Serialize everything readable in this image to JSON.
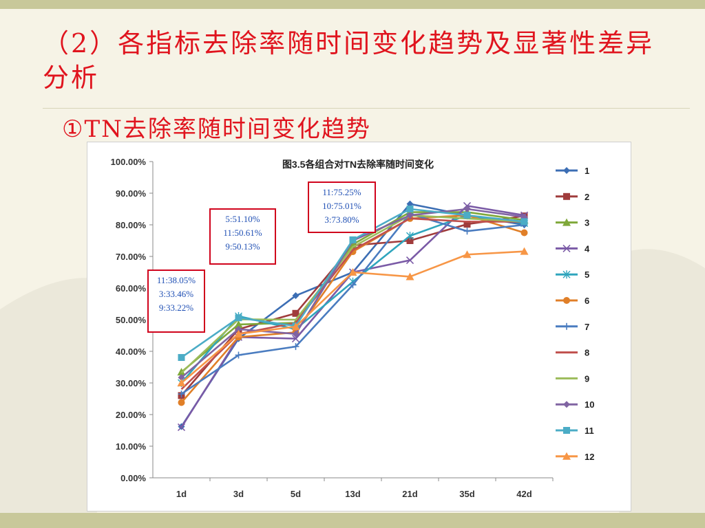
{
  "slide": {
    "title": "（2）各指标去除率随时间变化趋势及显著性差异分析",
    "subtitle": "①TN去除率随时间变化趋势"
  },
  "chart_data": {
    "type": "line",
    "title": "图3.5各组合对TN去除率随时间变化",
    "categories": [
      "1d",
      "3d",
      "5d",
      "13d",
      "21d",
      "35d",
      "42d"
    ],
    "y_ticks": [
      "0.00%",
      "10.00%",
      "20.00%",
      "30.00%",
      "40.00%",
      "50.00%",
      "60.00%",
      "70.00%",
      "80.00%",
      "90.00%",
      "100.00%"
    ],
    "ylim": [
      0,
      100
    ],
    "xlabel": "",
    "ylabel": "",
    "legend_position": "right",
    "series": [
      {
        "name": "1",
        "color": "#3c6eb4",
        "marker": "diamond",
        "values": [
          16.2,
          44.0,
          57.6,
          65.0,
          86.6,
          83.0,
          80.0
        ]
      },
      {
        "name": "2",
        "color": "#a03c3c",
        "marker": "square",
        "values": [
          26.0,
          47.0,
          52.0,
          73.5,
          75.0,
          80.2,
          82.8
        ]
      },
      {
        "name": "3",
        "color": "#7fa83a",
        "marker": "triangle",
        "values": [
          33.46,
          48.5,
          49.0,
          73.8,
          84.0,
          84.0,
          81.5
        ]
      },
      {
        "name": "4",
        "color": "#7a5aa6",
        "marker": "x",
        "values": [
          16.0,
          44.5,
          44.0,
          65.0,
          68.8,
          86.0,
          83.0
        ]
      },
      {
        "name": "5",
        "color": "#2fa5bd",
        "marker": "star",
        "values": [
          30.0,
          51.1,
          47.0,
          62.0,
          76.5,
          83.0,
          80.5
        ]
      },
      {
        "name": "6",
        "color": "#e07f28",
        "marker": "circle",
        "values": [
          23.8,
          44.5,
          46.0,
          71.5,
          82.0,
          83.0,
          77.5
        ]
      },
      {
        "name": "7",
        "color": "#4a7cc0",
        "marker": "plus",
        "values": [
          26.5,
          38.8,
          41.5,
          61.0,
          83.5,
          78.0,
          80.0
        ]
      },
      {
        "name": "8",
        "color": "#c0504d",
        "marker": "none",
        "values": [
          28.0,
          45.5,
          49.0,
          72.0,
          82.0,
          81.0,
          81.0
        ]
      },
      {
        "name": "9",
        "color": "#9bbb59",
        "marker": "none",
        "values": [
          33.22,
          50.13,
          50.0,
          73.0,
          83.0,
          82.0,
          81.0
        ]
      },
      {
        "name": "10",
        "color": "#8064a2",
        "marker": "diamond",
        "values": [
          31.7,
          47.0,
          45.5,
          75.01,
          83.0,
          85.0,
          82.5
        ]
      },
      {
        "name": "11",
        "color": "#4bacc6",
        "marker": "square",
        "values": [
          38.05,
          50.61,
          48.0,
          75.25,
          85.0,
          83.0,
          81.0
        ]
      },
      {
        "name": "12",
        "color": "#f79646",
        "marker": "triangle",
        "values": [
          30.0,
          45.5,
          47.8,
          65.0,
          63.6,
          70.6,
          71.6
        ]
      }
    ],
    "annotations": [
      {
        "lines": [
          "11:38.05%",
          "3:33.46%",
          "9:33.22%"
        ]
      },
      {
        "lines": [
          "5:51.10%",
          "11:50.61%",
          "9:50.13%"
        ]
      },
      {
        "lines": [
          "11:75.25%",
          "10:75.01%",
          "3:73.80%"
        ]
      }
    ]
  }
}
